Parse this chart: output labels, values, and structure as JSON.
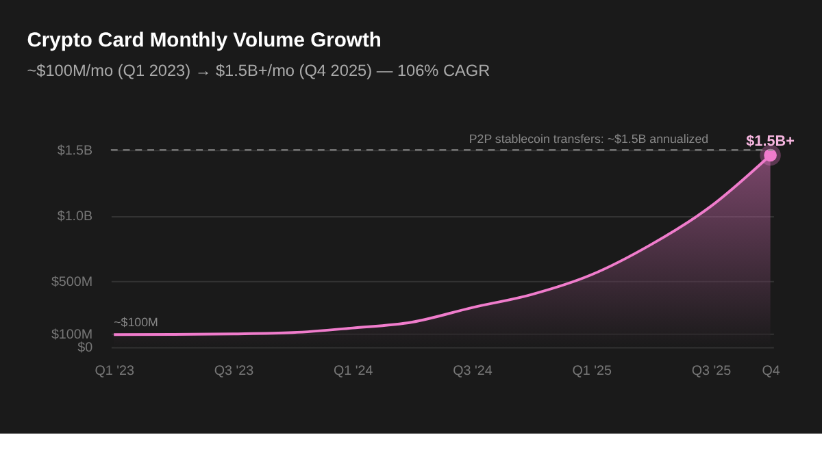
{
  "chart_data": {
    "type": "area",
    "title": "Crypto Card Monthly Volume Growth",
    "subtitle": "~$100M/mo (Q1 2023) → $1.5B+/mo (Q4 2025) — 106% CAGR",
    "categories": [
      "Q1 '23",
      null,
      "Q3 '23",
      null,
      "Q1 '24",
      null,
      "Q3 '24",
      null,
      "Q1 '25",
      null,
      "Q3 '25",
      "Q4"
    ],
    "series": [
      {
        "color": "#f07ccc",
        "values": [
          95000000,
          96000000,
          100000000,
          110000000,
          145000000,
          190000000,
          300000000,
          400000000,
          550000000,
          780000000,
          1070000000,
          1460000000
        ]
      },
      {
        "type": "scatter",
        "color": "#f07ccc",
        "x": [
          "Q4"
        ],
        "values": [
          1460000000
        ]
      }
    ],
    "ylim": [
      0,
      1500000000
    ],
    "yticks": [
      {
        "value": 0,
        "label": "$0"
      },
      {
        "value": 100000000,
        "label": "$100M"
      },
      {
        "value": 500000000,
        "label": "$500M"
      },
      {
        "value": 1000000000,
        "label": "$1.0B"
      },
      {
        "value": 1500000000,
        "label": "$1.5B"
      }
    ],
    "ref_lines": [
      {
        "axis": "y",
        "value": 1500000000,
        "label": "P2P stablecoin transfers: ~$1.5B annualized",
        "line_style": "dashed",
        "color": "#888888"
      }
    ],
    "annotations": [
      {
        "text": "~$100M",
        "x": "Q1 '23",
        "y": 95000000
      },
      {
        "text": "$1.5B+",
        "x": "Q4",
        "y": 1460000000
      }
    ],
    "grid": "y"
  }
}
